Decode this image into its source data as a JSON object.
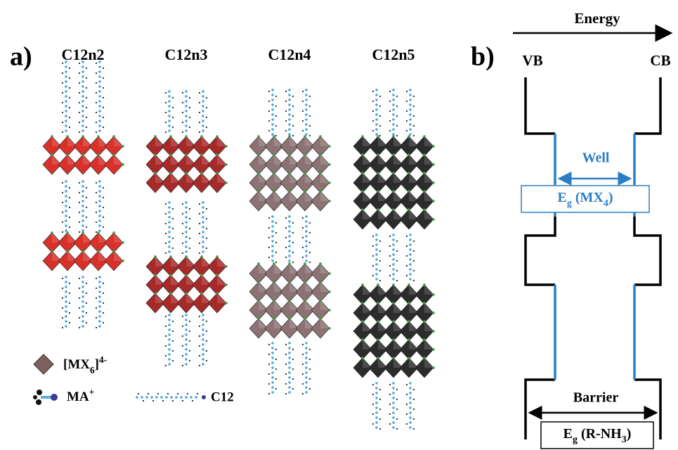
{
  "panel_a": {
    "label": "a)",
    "structures": [
      {
        "name": "C12n2"
      },
      {
        "name": "C12n3"
      },
      {
        "name": "C12n4"
      },
      {
        "name": "C12n5"
      }
    ],
    "legend": {
      "octahedron": [
        {
          "t": "[MX"
        },
        {
          "sub": "6"
        },
        {
          "t": "]"
        },
        {
          "sup": "4-"
        }
      ],
      "cation": [
        {
          "t": "MA"
        },
        {
          "sup": "+"
        }
      ],
      "chain": "C12"
    }
  },
  "panel_b": {
    "label": "b)",
    "axis": "Energy",
    "left": "VB",
    "right": "CB",
    "well": "Well",
    "well_gap": [
      {
        "t": "E"
      },
      {
        "sub": "g"
      },
      {
        "t": " (MX"
      },
      {
        "sub": "4"
      },
      {
        "t": ")"
      }
    ],
    "barrier": "Barrier",
    "barrier_gap": [
      {
        "t": "E"
      },
      {
        "sub": "g"
      },
      {
        "t": " (R-NH"
      },
      {
        "sub": "3"
      },
      {
        "t": ")"
      }
    ]
  }
}
